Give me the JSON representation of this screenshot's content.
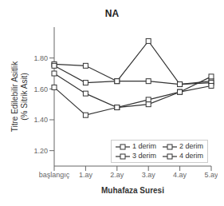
{
  "chart_data": {
    "type": "line",
    "title": "NA",
    "xlabel": "Muhafaza Suresi",
    "ylabel": "Titre Edilebilir Asitlik\n(% Sitrik Asit)",
    "categories": [
      "başlangıç",
      "1.ay",
      "2.ay",
      "3.ay",
      "4.ay",
      "5.ay"
    ],
    "series": [
      {
        "name": "1 derim",
        "color": "#333333",
        "marker": "square",
        "line_style": "solid",
        "values": [
          1.76,
          1.75,
          1.65,
          1.91,
          1.63,
          1.65
        ]
      },
      {
        "name": "2 derim",
        "color": "#333333",
        "marker": "square",
        "line_style": "solid",
        "values": [
          1.75,
          1.64,
          1.65,
          1.65,
          1.63,
          1.64
        ]
      },
      {
        "name": "3 derim",
        "color": "#333333",
        "marker": "square",
        "line_style": "solid",
        "values": [
          1.7,
          1.57,
          1.48,
          1.53,
          1.58,
          1.62
        ]
      },
      {
        "name": "4 derim",
        "color": "#333333",
        "marker": "square",
        "line_style": "solid",
        "values": [
          1.61,
          1.43,
          1.48,
          1.5,
          1.58,
          1.68
        ]
      }
    ],
    "ylim": [
      1.1,
      2.0
    ],
    "yticks": [
      {
        "value": 1.2,
        "label": "1.20"
      },
      {
        "value": 1.4,
        "label": "1.40"
      },
      {
        "value": 1.6,
        "label": "1.60"
      },
      {
        "value": 1.8,
        "label": "1.80"
      }
    ],
    "grid": false,
    "legend": "lower right"
  }
}
